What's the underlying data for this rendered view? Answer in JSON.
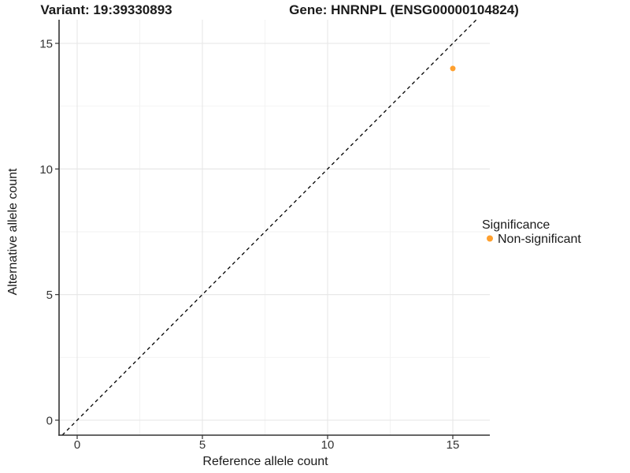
{
  "titles": {
    "variant": "Variant: 19:39330893",
    "gene": "Gene: HNRNPL (ENSG00000104824)"
  },
  "axes": {
    "x": {
      "label": "Reference allele count"
    },
    "y": {
      "label": "Alternative allele count"
    }
  },
  "legend": {
    "title": "Significance",
    "items": [
      {
        "label": "Non-significant",
        "color": "#FFA02E"
      }
    ]
  },
  "chart_data": {
    "type": "scatter",
    "title": "Variant: 19:39330893 | Gene: HNRNPL (ENSG00000104824)",
    "xlabel": "Reference allele count",
    "ylabel": "Alternative allele count",
    "x_ticks": [
      0,
      5,
      10,
      15
    ],
    "y_ticks": [
      0,
      5,
      10,
      15
    ],
    "xlim": [
      -0.72,
      16.48
    ],
    "ylim": [
      -0.6,
      15.94
    ],
    "grid": "major+minor",
    "legend_position": "right",
    "reference_line": {
      "type": "identity",
      "slope": 1,
      "intercept": 0,
      "style": "dashed",
      "color": "#000000"
    },
    "series": [
      {
        "name": "Non-significant",
        "color": "#FFA02E",
        "points": [
          {
            "x": 15,
            "y": 14
          }
        ]
      }
    ]
  },
  "style_colors": {
    "axis_line": "#333333",
    "major_grid": "#e6e6e6",
    "minor_grid": "#f2f2f2",
    "point_orange": "#FFA02E"
  }
}
